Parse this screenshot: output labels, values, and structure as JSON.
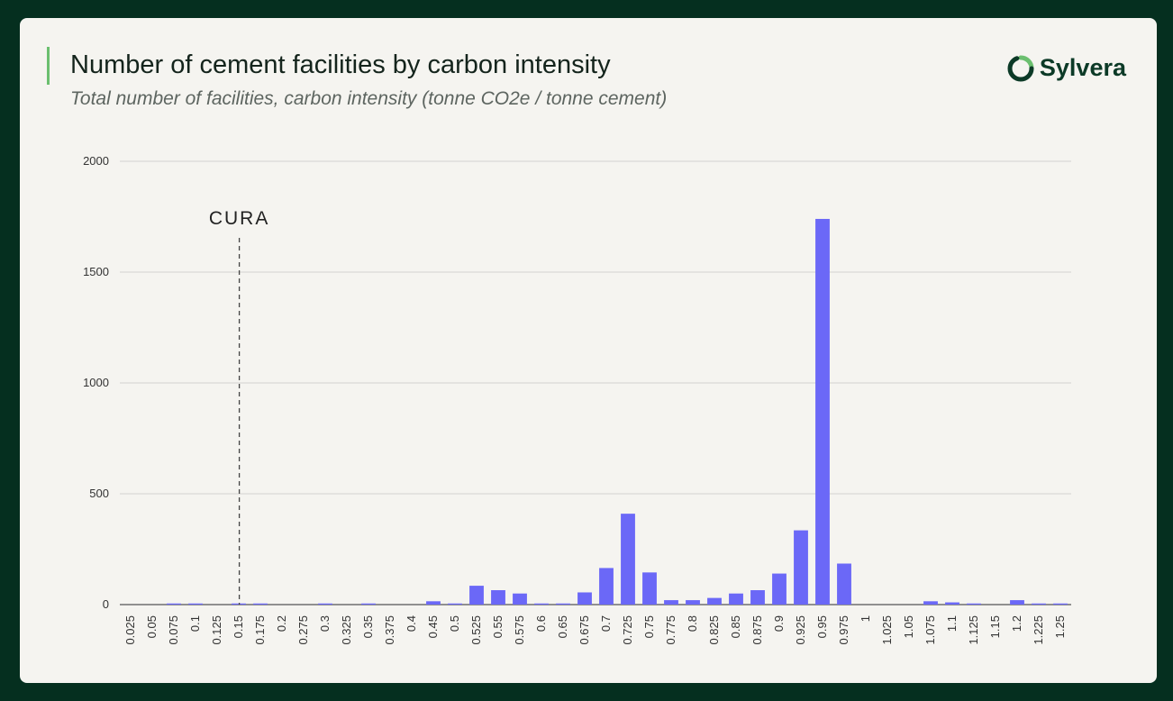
{
  "header": {
    "title": "Number of cement facilities by carbon intensity",
    "subtitle": "Total number of facilities, carbon intensity (tonne CO2e / tonne cement)"
  },
  "logo": {
    "text": "Sylvera",
    "icon": "sylvera-ring-icon"
  },
  "colors": {
    "background": "#052f1f",
    "card": "#f5f4f0",
    "accent": "#6bbf6f",
    "bar": "#6b68f7",
    "logo": "#0c3a27"
  },
  "chart_data": {
    "type": "bar",
    "title": "Number of cement facilities by carbon intensity",
    "subtitle": "Total number of facilities, carbon intensity (tonne CO2e / tonne cement)",
    "categories": [
      "0.025",
      "0.05",
      "0.075",
      "0.1",
      "0.125",
      "0.15",
      "0.175",
      "0.2",
      "0.275",
      "0.3",
      "0.325",
      "0.35",
      "0.375",
      "0.4",
      "0.45",
      "0.5",
      "0.525",
      "0.55",
      "0.575",
      "0.6",
      "0.65",
      "0.675",
      "0.7",
      "0.725",
      "0.75",
      "0.775",
      "0.8",
      "0.825",
      "0.85",
      "0.875",
      "0.9",
      "0.925",
      "0.95",
      "0.975",
      "1",
      "1.025",
      "1.05",
      "1.075",
      "1.1",
      "1.125",
      "1.15",
      "1.2",
      "1.225",
      "1.25"
    ],
    "values": [
      0,
      0,
      5,
      5,
      0,
      5,
      5,
      0,
      0,
      5,
      0,
      5,
      0,
      0,
      15,
      5,
      85,
      65,
      50,
      5,
      5,
      55,
      165,
      410,
      145,
      20,
      20,
      30,
      50,
      65,
      140,
      335,
      1740,
      185,
      0,
      0,
      0,
      15,
      10,
      5,
      0,
      20,
      5,
      5
    ],
    "ylim": [
      0,
      2000
    ],
    "yticks": [
      0,
      500,
      1000,
      1500,
      2000
    ],
    "grid": true,
    "annotations": [
      {
        "label": "CURA",
        "x": "0.15",
        "style": "dashed-vertical-line"
      }
    ]
  }
}
